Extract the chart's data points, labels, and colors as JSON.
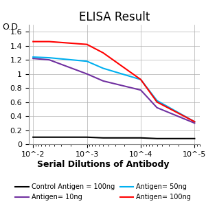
{
  "title": "ELISA Result",
  "ylabel": "O.D.",
  "xlabel": "Serial Dilutions of Antibody",
  "x_ticks": [
    0.01,
    0.001,
    0.0001,
    1e-05
  ],
  "x_tick_labels": [
    "10^-2",
    "10^-3",
    "10^-4",
    "10^-5"
  ],
  "ylim": [
    0,
    1.7
  ],
  "yticks": [
    0,
    0.2,
    0.4,
    0.6,
    0.8,
    1.0,
    1.2,
    1.4,
    1.6
  ],
  "ytick_labels": [
    "0",
    "0.2",
    "0.4",
    "0.6",
    "0.8",
    "1",
    "1.2",
    "1.4",
    "1.6"
  ],
  "lines": {
    "control": {
      "color": "#000000",
      "label": "Control Antigen = 100ng",
      "x": [
        0.01,
        0.005,
        0.001,
        0.0005,
        0.0001,
        5e-05,
        1e-05
      ],
      "y": [
        0.1,
        0.1,
        0.1,
        0.09,
        0.09,
        0.08,
        0.08
      ]
    },
    "antigen10": {
      "color": "#7030A0",
      "label": "Antigen= 10ng",
      "x": [
        0.01,
        0.005,
        0.001,
        0.0005,
        0.0001,
        5e-05,
        1e-05
      ],
      "y": [
        1.22,
        1.2,
        1.0,
        0.9,
        0.77,
        0.52,
        0.3
      ]
    },
    "antigen50": {
      "color": "#00B0F0",
      "label": "Antigen= 50ng",
      "x": [
        0.01,
        0.005,
        0.001,
        0.0005,
        0.0001,
        5e-05,
        1e-05
      ],
      "y": [
        1.24,
        1.23,
        1.18,
        1.08,
        0.92,
        0.62,
        0.32
      ]
    },
    "antigen100": {
      "color": "#FF0000",
      "label": "Antigen= 100ng",
      "x": [
        0.01,
        0.005,
        0.001,
        0.0005,
        0.0001,
        5e-05,
        1e-05
      ],
      "y": [
        1.46,
        1.46,
        1.42,
        1.3,
        0.92,
        0.6,
        0.32
      ]
    }
  },
  "background_color": "#ffffff",
  "grid_color": "#b0b0b0",
  "title_fontsize": 12,
  "label_fontsize": 9,
  "legend_fontsize": 7,
  "tick_fontsize": 8
}
